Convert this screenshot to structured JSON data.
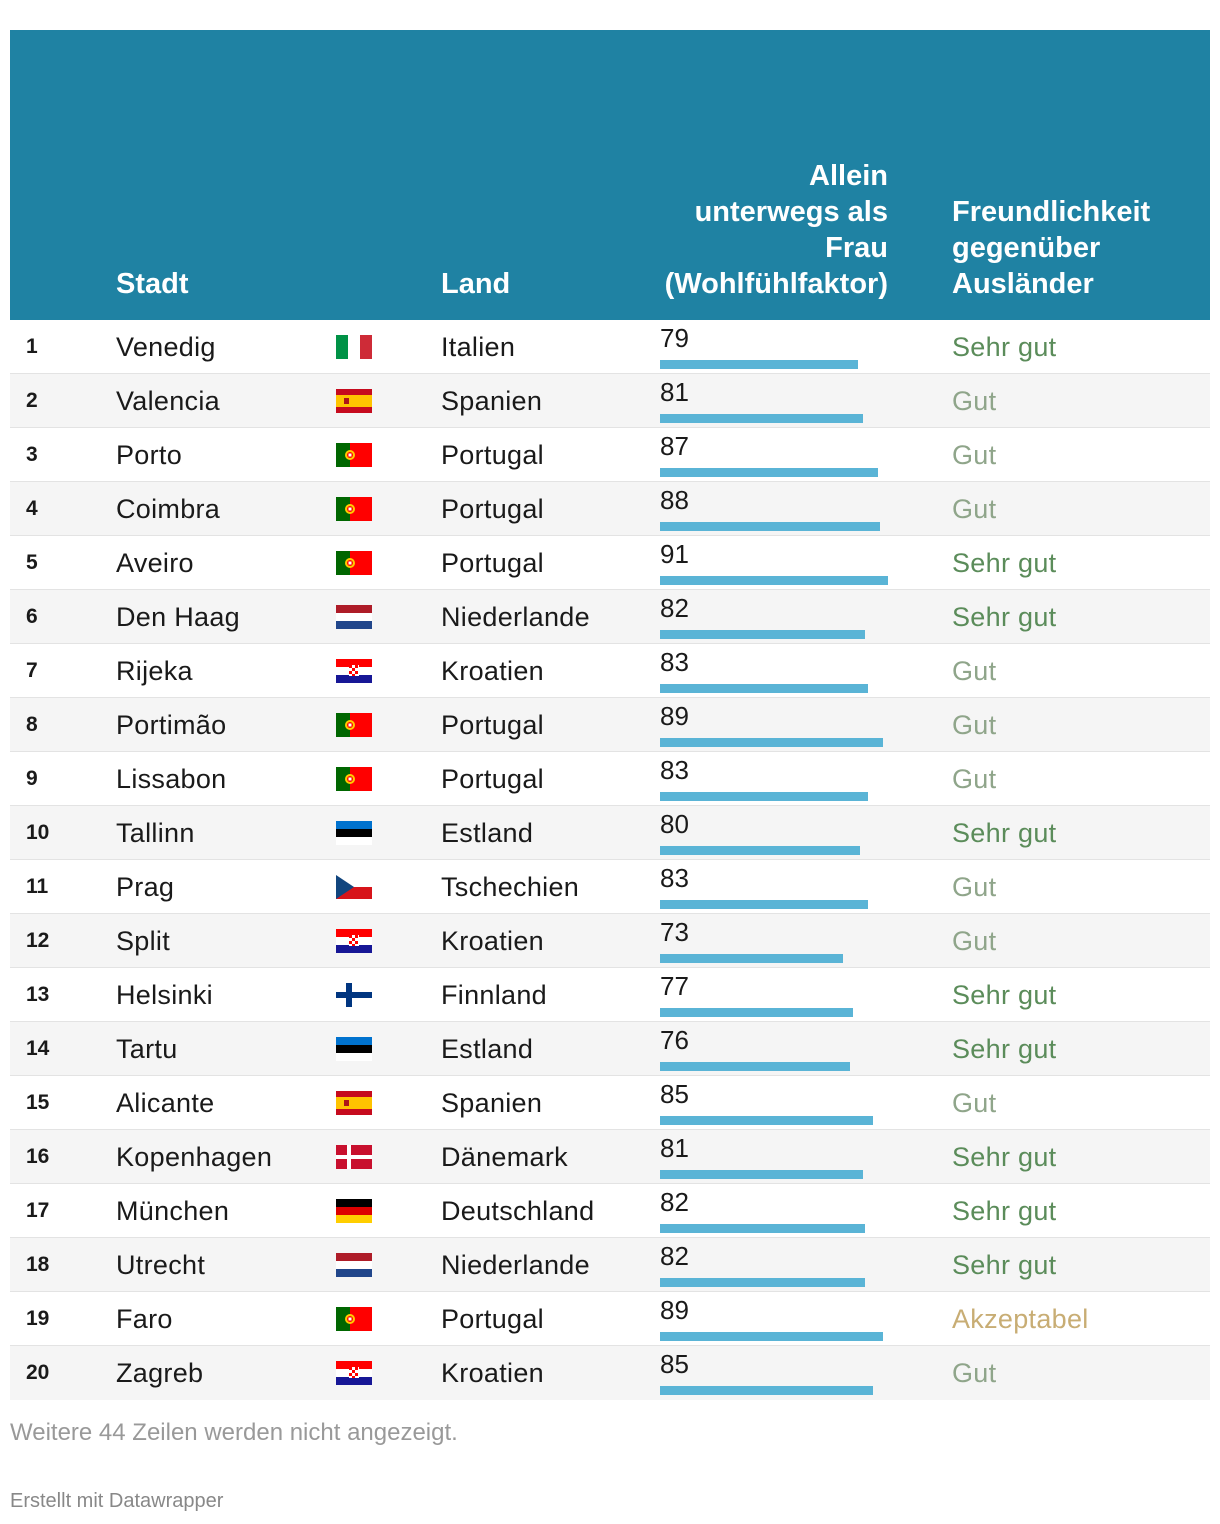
{
  "colors": {
    "header_bg": "#1f82a3",
    "bar": "#5ab4d6",
    "sehr_gut": "#5b8c5a",
    "gut": "#8fa58a",
    "akzeptabel": "#c8ad74"
  },
  "header": {
    "stadt": "Stadt",
    "land": "Land",
    "allein_lines": [
      "Allein",
      "unterwegs als",
      "Frau",
      "(Wohlfühlfaktor)"
    ],
    "freund_lines": [
      "Freundlichkeit",
      "gegenüber",
      "Ausländer"
    ]
  },
  "chart_data": {
    "type": "table",
    "columns": [
      "",
      "Stadt",
      "",
      "Land",
      "Allein unterwegs als Frau (Wohlfühlfaktor)",
      "Freundlichkeit gegenüber Ausländer"
    ],
    "bar_scale_max": 100,
    "rows": [
      {
        "rank": "1",
        "city": "Venedig",
        "flag": "it-flag-icon",
        "country": "Italien",
        "score": 79,
        "rating": "Sehr gut"
      },
      {
        "rank": "2",
        "city": "Valencia",
        "flag": "es-flag-icon",
        "country": "Spanien",
        "score": 81,
        "rating": "Gut"
      },
      {
        "rank": "3",
        "city": "Porto",
        "flag": "pt-flag-icon",
        "country": "Portugal",
        "score": 87,
        "rating": "Gut"
      },
      {
        "rank": "4",
        "city": "Coimbra",
        "flag": "pt-flag-icon",
        "country": "Portugal",
        "score": 88,
        "rating": "Gut"
      },
      {
        "rank": "5",
        "city": "Aveiro",
        "flag": "pt-flag-icon",
        "country": "Portugal",
        "score": 91,
        "rating": "Sehr gut"
      },
      {
        "rank": "6",
        "city": "Den Haag",
        "flag": "nl-flag-icon",
        "country": "Niederlande",
        "score": 82,
        "rating": "Sehr gut"
      },
      {
        "rank": "7",
        "city": "Rijeka",
        "flag": "hr-flag-icon",
        "country": "Kroatien",
        "score": 83,
        "rating": "Gut"
      },
      {
        "rank": "8",
        "city": "Portimão",
        "flag": "pt-flag-icon",
        "country": "Portugal",
        "score": 89,
        "rating": "Gut"
      },
      {
        "rank": "9",
        "city": "Lissabon",
        "flag": "pt-flag-icon",
        "country": "Portugal",
        "score": 83,
        "rating": "Gut"
      },
      {
        "rank": "10",
        "city": "Tallinn",
        "flag": "ee-flag-icon",
        "country": "Estland",
        "score": 80,
        "rating": "Sehr gut"
      },
      {
        "rank": "11",
        "city": "Prag",
        "flag": "cz-flag-icon",
        "country": "Tschechien",
        "score": 83,
        "rating": "Gut"
      },
      {
        "rank": "12",
        "city": "Split",
        "flag": "hr-flag-icon",
        "country": "Kroatien",
        "score": 73,
        "rating": "Gut"
      },
      {
        "rank": "13",
        "city": "Helsinki",
        "flag": "fi-flag-icon",
        "country": "Finnland",
        "score": 77,
        "rating": "Sehr gut"
      },
      {
        "rank": "14",
        "city": "Tartu",
        "flag": "ee-flag-icon",
        "country": "Estland",
        "score": 76,
        "rating": "Sehr gut"
      },
      {
        "rank": "15",
        "city": "Alicante",
        "flag": "es-flag-icon",
        "country": "Spanien",
        "score": 85,
        "rating": "Gut"
      },
      {
        "rank": "16",
        "city": "Kopenhagen",
        "flag": "dk-flag-icon",
        "country": "Dänemark",
        "score": 81,
        "rating": "Sehr gut"
      },
      {
        "rank": "17",
        "city": "München",
        "flag": "de-flag-icon",
        "country": "Deutschland",
        "score": 82,
        "rating": "Sehr gut"
      },
      {
        "rank": "18",
        "city": "Utrecht",
        "flag": "nl-flag-icon",
        "country": "Niederlande",
        "score": 82,
        "rating": "Sehr gut"
      },
      {
        "rank": "19",
        "city": "Faro",
        "flag": "pt-flag-icon",
        "country": "Portugal",
        "score": 89,
        "rating": "Akzeptabel"
      },
      {
        "rank": "20",
        "city": "Zagreb",
        "flag": "hr-flag-icon",
        "country": "Kroatien",
        "score": 85,
        "rating": "Gut"
      }
    ]
  },
  "footnote": "Weitere 44 Zeilen werden nicht angezeigt.",
  "credit": "Erstellt mit Datawrapper"
}
